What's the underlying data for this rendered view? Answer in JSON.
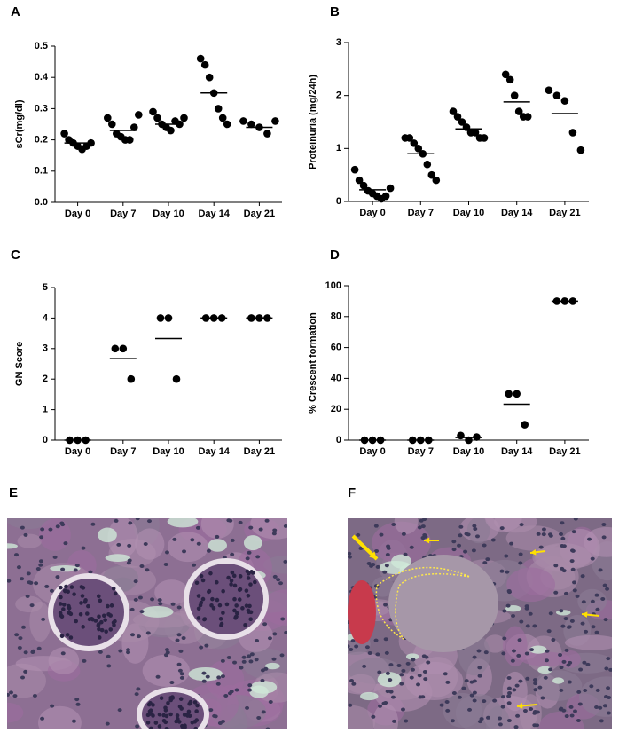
{
  "chart_data": [
    {
      "type": "dot",
      "panel": "A",
      "y_label": "sCr(mg/dl)",
      "color": "#000000",
      "categories": [
        "Day 0",
        "Day 7",
        "Day 10",
        "Day 14",
        "Day 21"
      ],
      "values": [
        [
          0.22,
          0.2,
          0.19,
          0.18,
          0.17,
          0.18,
          0.19
        ],
        [
          0.27,
          0.25,
          0.22,
          0.21,
          0.2,
          0.2,
          0.24,
          0.28
        ],
        [
          0.29,
          0.27,
          0.25,
          0.24,
          0.23,
          0.26,
          0.25,
          0.27
        ],
        [
          0.46,
          0.44,
          0.4,
          0.35,
          0.3,
          0.27,
          0.25
        ],
        [
          0.26,
          0.25,
          0.24,
          0.22,
          0.26
        ]
      ],
      "means": [
        0.19,
        0.23,
        0.25,
        0.35,
        0.24
      ],
      "ylim": [
        0,
        0.5
      ],
      "yticks": [
        {
          "value": 0,
          "label": "0.0"
        },
        0.1,
        0.2,
        0.3,
        0.4,
        0.5
      ]
    },
    {
      "type": "dot",
      "panel": "B",
      "y_label": "Proteinuria (mg/24h)",
      "color": "#000000",
      "categories": [
        "Day 0",
        "Day 7",
        "Day 10",
        "Day 14",
        "Day 21"
      ],
      "values": [
        [
          0.6,
          0.4,
          0.3,
          0.2,
          0.15,
          0.1,
          0.05,
          0.1,
          0.25
        ],
        [
          1.2,
          1.2,
          1.1,
          1.0,
          0.9,
          0.7,
          0.5,
          0.4
        ],
        [
          1.7,
          1.6,
          1.5,
          1.4,
          1.3,
          1.3,
          1.2,
          1.2
        ],
        [
          2.4,
          2.3,
          2.0,
          1.7,
          1.6,
          1.6
        ],
        [
          2.1,
          2.0,
          1.9,
          1.3,
          0.97
        ]
      ],
      "means": [
        0.22,
        0.9,
        1.37,
        1.88,
        1.66
      ],
      "ylim": [
        0,
        3
      ],
      "yticks": [
        0,
        1,
        2,
        3
      ]
    },
    {
      "type": "dot",
      "panel": "C",
      "y_label": "GN Score",
      "color": "#000000",
      "categories": [
        "Day 0",
        "Day 7",
        "Day 10",
        "Day 14",
        "Day 21"
      ],
      "values": [
        [
          0,
          0,
          0
        ],
        [
          3,
          3,
          2
        ],
        [
          4,
          4,
          2
        ],
        [
          4,
          4,
          4
        ],
        [
          4,
          4,
          4
        ]
      ],
      "means": [
        0,
        2.67,
        3.33,
        4,
        4
      ],
      "ylim": [
        0,
        5
      ],
      "yticks": [
        0,
        1,
        2,
        3,
        4,
        5
      ]
    },
    {
      "type": "dot",
      "panel": "D",
      "y_label": "% Crescent formation",
      "color": "#000000",
      "categories": [
        "Day 0",
        "Day 7",
        "Day 10",
        "Day 14",
        "Day 21"
      ],
      "values": [
        [
          0,
          0,
          0
        ],
        [
          0,
          0,
          0
        ],
        [
          3,
          0,
          2
        ],
        [
          30,
          30,
          10
        ],
        [
          90,
          90,
          90
        ]
      ],
      "means": [
        0,
        0,
        1.67,
        23.3,
        90
      ],
      "ylim": [
        0,
        100
      ],
      "yticks": [
        0,
        20,
        40,
        60,
        80,
        100
      ]
    }
  ],
  "panels": [
    {
      "label": "E"
    },
    {
      "label": "F"
    }
  ]
}
